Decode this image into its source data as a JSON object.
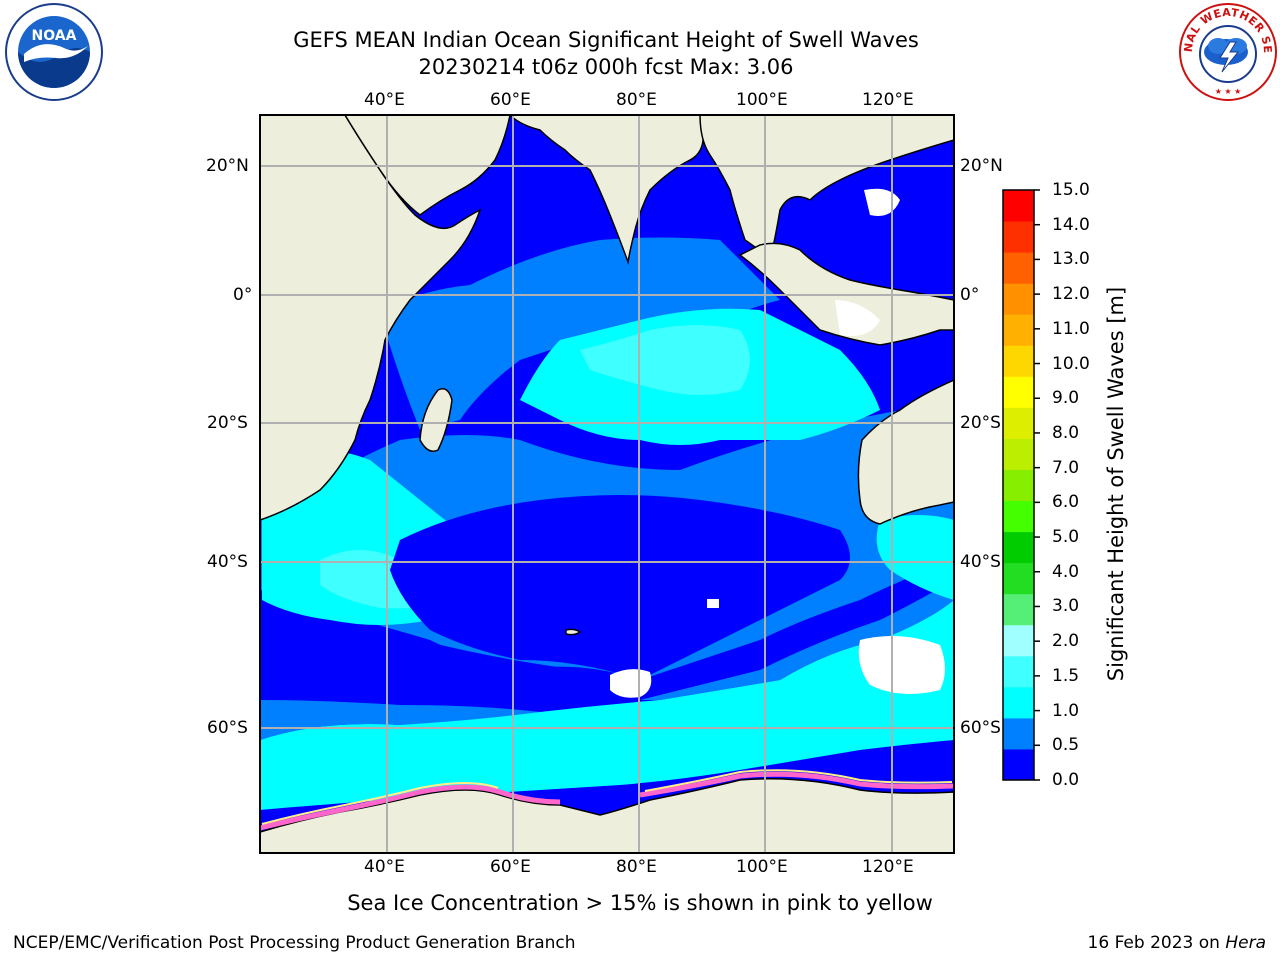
{
  "header": {
    "title_line1": "GEFS MEAN Indian Ocean Significant Height of Swell Waves",
    "title_line2": "20230214 t06z 000h fcst   Max: 3.06"
  },
  "logos": {
    "left": {
      "name": "noaa-logo",
      "text": "NOAA"
    },
    "right": {
      "name": "nws-logo",
      "text": "NATIONAL WEATHER SERVICE"
    }
  },
  "map": {
    "lon_ticks": [
      "40°E",
      "60°E",
      "80°E",
      "100°E",
      "120°E"
    ],
    "lat_ticks": [
      "20°N",
      "0°",
      "20°S",
      "40°S",
      "60°S"
    ],
    "lon_range": [
      20,
      130
    ],
    "lat_range": [
      -72,
      28
    ],
    "colors": {
      "land": "#eeeedd",
      "ocean_deep": "#0000ff",
      "ocean_mid": "#0080ff",
      "ocean_light": "#00ffff",
      "grid": "#b0b0b0"
    }
  },
  "colorbar": {
    "title": "Significant Height of Swell Waves [m]",
    "labels": [
      "15.0",
      "14.0",
      "13.0",
      "12.0",
      "11.0",
      "10.0",
      "9.0",
      "8.0",
      "7.0",
      "6.0",
      "5.0",
      "4.0",
      "3.0",
      "2.0",
      "1.5",
      "1.0",
      "0.5",
      "0.0"
    ],
    "colors_bottom_to_top": [
      "#0000ff",
      "#0080ff",
      "#00ffff",
      "#40ffff",
      "#a0ffff",
      "#55ee77",
      "#22dd22",
      "#00cc00",
      "#44ff00",
      "#88ee00",
      "#bbee00",
      "#ddee00",
      "#ffff00",
      "#ffd700",
      "#ffb000",
      "#ff9000",
      "#ff6000",
      "#ff3000",
      "#ff0000"
    ]
  },
  "note": "Sea Ice Concentration > 15% is shown in pink to yellow",
  "footer": {
    "left": "NCEP/EMC/Verification Post Processing Product Generation Branch",
    "right_prefix": "16 Feb 2023 on ",
    "right_host": "Hera"
  }
}
